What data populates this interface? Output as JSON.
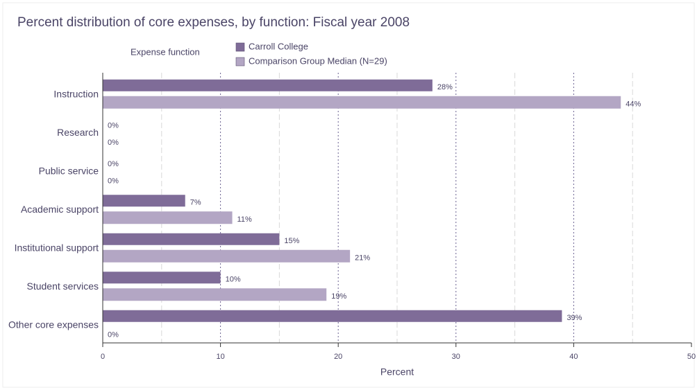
{
  "chart_data": {
    "type": "bar",
    "orientation": "horizontal",
    "title": "Percent distribution of core expenses, by function: Fiscal year 2008",
    "y_label": "Expense function",
    "x_label": "Percent",
    "categories": [
      "Instruction",
      "Research",
      "Public service",
      "Academic support",
      "Institutional support",
      "Student services",
      "Other core expenses"
    ],
    "series": [
      {
        "name": "Carroll College",
        "color": "#7f6c98",
        "values": [
          28,
          0,
          0,
          7,
          15,
          10,
          39
        ],
        "value_labels": [
          "28%",
          "0%",
          "0%",
          "7%",
          "15%",
          "10%",
          "39%"
        ]
      },
      {
        "name": "Comparison Group Median  (N=29)",
        "color": "#b3a6c4",
        "values": [
          44,
          0,
          0,
          11,
          21,
          19,
          0
        ],
        "value_labels": [
          "44%",
          "0%",
          "0%",
          "11%",
          "21%",
          "19%",
          "0%"
        ]
      }
    ],
    "xlim": [
      0,
      50
    ],
    "xticks": [
      0,
      10,
      20,
      30,
      40,
      50
    ],
    "xminor": [
      5,
      15,
      25,
      35,
      45
    ],
    "grid": true
  }
}
